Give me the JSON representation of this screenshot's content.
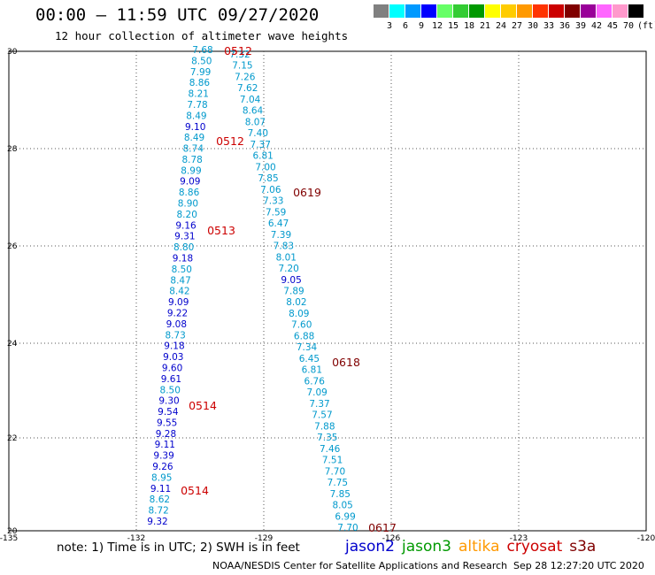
{
  "title": "00:00 — 11:59 UTC 09/27/2020",
  "subtitle": "12 hour collection of altimeter wave heights",
  "legend": {
    "colors": [
      "#808080",
      "#00ffff",
      "#0099ff",
      "#0000ff",
      "#66ff66",
      "#33cc33",
      "#009900",
      "#ffff00",
      "#ffcc00",
      "#ff9900",
      "#ff3300",
      "#cc0000",
      "#800000",
      "#990099",
      "#ff66ff",
      "#ff99cc",
      "#000000"
    ],
    "labels": [
      "3",
      "6",
      "9",
      "12",
      "15",
      "18",
      "21",
      "24",
      "27",
      "30",
      "33",
      "36",
      "39",
      "42",
      "45",
      "70"
    ],
    "unit": "(ft)"
  },
  "axes": {
    "lon_ticks": [
      "-135",
      "-132",
      "-129",
      "-126",
      "-123",
      "-120"
    ],
    "lat_ticks": [
      "30",
      "28",
      "26",
      "24",
      "22",
      "20"
    ]
  },
  "colors": {
    "jason2": "#0000cc",
    "jason3": "#009900",
    "altika": "#ff9900",
    "cryosat": "#cc0000",
    "s3a": "#800000",
    "light": "#0099cc"
  },
  "tracks": [
    {
      "id": "left",
      "points": [
        {
          "v": "7.68",
          "c": "light"
        },
        {
          "v": "8.50",
          "c": "light"
        },
        {
          "v": "7.99",
          "c": "light"
        },
        {
          "v": "8.86",
          "c": "light"
        },
        {
          "v": "8.21",
          "c": "light"
        },
        {
          "v": "7.78",
          "c": "light"
        },
        {
          "v": "8.49",
          "c": "light"
        },
        {
          "v": "9.10",
          "c": "jason2"
        },
        {
          "v": "8.49",
          "c": "light"
        },
        {
          "v": "8.74",
          "c": "light"
        },
        {
          "v": "8.78",
          "c": "light"
        },
        {
          "v": "8.99",
          "c": "light"
        },
        {
          "v": "9.09",
          "c": "jason2"
        },
        {
          "v": "8.86",
          "c": "light"
        },
        {
          "v": "8.90",
          "c": "light"
        },
        {
          "v": "8.20",
          "c": "light"
        },
        {
          "v": "9.16",
          "c": "jason2"
        },
        {
          "v": "9.31",
          "c": "jason2"
        },
        {
          "v": "8.80",
          "c": "light"
        },
        {
          "v": "9.18",
          "c": "jason2"
        },
        {
          "v": "8.50",
          "c": "light"
        },
        {
          "v": "8.47",
          "c": "light"
        },
        {
          "v": "8.42",
          "c": "light"
        },
        {
          "v": "9.09",
          "c": "jason2"
        },
        {
          "v": "9.22",
          "c": "jason2"
        },
        {
          "v": "9.08",
          "c": "jason2"
        },
        {
          "v": "8.73",
          "c": "light"
        },
        {
          "v": "9.18",
          "c": "jason2"
        },
        {
          "v": "9.03",
          "c": "jason2"
        },
        {
          "v": "9.60",
          "c": "jason2"
        },
        {
          "v": "9.61",
          "c": "jason2"
        },
        {
          "v": "8.50",
          "c": "light"
        },
        {
          "v": "9.30",
          "c": "jason2"
        },
        {
          "v": "9.54",
          "c": "jason2"
        },
        {
          "v": "9.55",
          "c": "jason2"
        },
        {
          "v": "9.28",
          "c": "jason2"
        },
        {
          "v": "9.11",
          "c": "jason2"
        },
        {
          "v": "9.39",
          "c": "jason2"
        },
        {
          "v": "9.26",
          "c": "jason2"
        },
        {
          "v": "8.95",
          "c": "light"
        },
        {
          "v": "9.11",
          "c": "jason2"
        },
        {
          "v": "8.62",
          "c": "light"
        },
        {
          "v": "8.72",
          "c": "light"
        },
        {
          "v": "9.32",
          "c": "jason2"
        }
      ]
    },
    {
      "id": "right",
      "points": [
        {
          "v": "7.32",
          "c": "light"
        },
        {
          "v": "7.15",
          "c": "light"
        },
        {
          "v": "7.26",
          "c": "light"
        },
        {
          "v": "7.62",
          "c": "light"
        },
        {
          "v": "7.04",
          "c": "light"
        },
        {
          "v": "8.64",
          "c": "light"
        },
        {
          "v": "8.07",
          "c": "light"
        },
        {
          "v": "7.40",
          "c": "light"
        },
        {
          "v": "7.37",
          "c": "light"
        },
        {
          "v": "6.81",
          "c": "light"
        },
        {
          "v": "7.00",
          "c": "light"
        },
        {
          "v": "7.85",
          "c": "light"
        },
        {
          "v": "7.06",
          "c": "light"
        },
        {
          "v": "7.33",
          "c": "light"
        },
        {
          "v": "7.59",
          "c": "light"
        },
        {
          "v": "6.47",
          "c": "light"
        },
        {
          "v": "7.39",
          "c": "light"
        },
        {
          "v": "7.83",
          "c": "light"
        },
        {
          "v": "8.01",
          "c": "light"
        },
        {
          "v": "7.20",
          "c": "light"
        },
        {
          "v": "9.05",
          "c": "jason2"
        },
        {
          "v": "7.89",
          "c": "light"
        },
        {
          "v": "8.02",
          "c": "light"
        },
        {
          "v": "8.09",
          "c": "light"
        },
        {
          "v": "7.60",
          "c": "light"
        },
        {
          "v": "6.88",
          "c": "light"
        },
        {
          "v": "7.34",
          "c": "light"
        },
        {
          "v": "6.45",
          "c": "light"
        },
        {
          "v": "6.81",
          "c": "light"
        },
        {
          "v": "6.76",
          "c": "light"
        },
        {
          "v": "7.09",
          "c": "light"
        },
        {
          "v": "7.37",
          "c": "light"
        },
        {
          "v": "7.57",
          "c": "light"
        },
        {
          "v": "7.88",
          "c": "light"
        },
        {
          "v": "7.35",
          "c": "light"
        },
        {
          "v": "7.46",
          "c": "light"
        },
        {
          "v": "7.51",
          "c": "light"
        },
        {
          "v": "7.70",
          "c": "light"
        },
        {
          "v": "7.75",
          "c": "light"
        },
        {
          "v": "7.85",
          "c": "light"
        },
        {
          "v": "8.05",
          "c": "light"
        },
        {
          "v": "6.99",
          "c": "light"
        },
        {
          "v": "7.70",
          "c": "light"
        }
      ]
    }
  ],
  "time_labels": [
    {
      "t": "0512",
      "c": "cryosat"
    },
    {
      "t": "0512",
      "c": "cryosat"
    },
    {
      "t": "0513",
      "c": "cryosat"
    },
    {
      "t": "0514",
      "c": "cryosat"
    },
    {
      "t": "0514",
      "c": "cryosat"
    },
    {
      "t": "0619",
      "c": "s3a"
    },
    {
      "t": "0618",
      "c": "s3a"
    },
    {
      "t": "0617",
      "c": "s3a"
    }
  ],
  "note": "note: 1) Time is in UTC; 2) SWH is in feet",
  "satellites": [
    {
      "name": "jason2",
      "c": "jason2"
    },
    {
      "name": "jason3",
      "c": "jason3"
    },
    {
      "name": "altika",
      "c": "altika"
    },
    {
      "name": "cryosat",
      "c": "cryosat"
    },
    {
      "name": "s3a",
      "c": "s3a"
    }
  ],
  "credit": "NOAA/NESDIS Center for Satellite Applications and Research",
  "credit_time": "Sep 28 12:27:20 UTC 2020"
}
